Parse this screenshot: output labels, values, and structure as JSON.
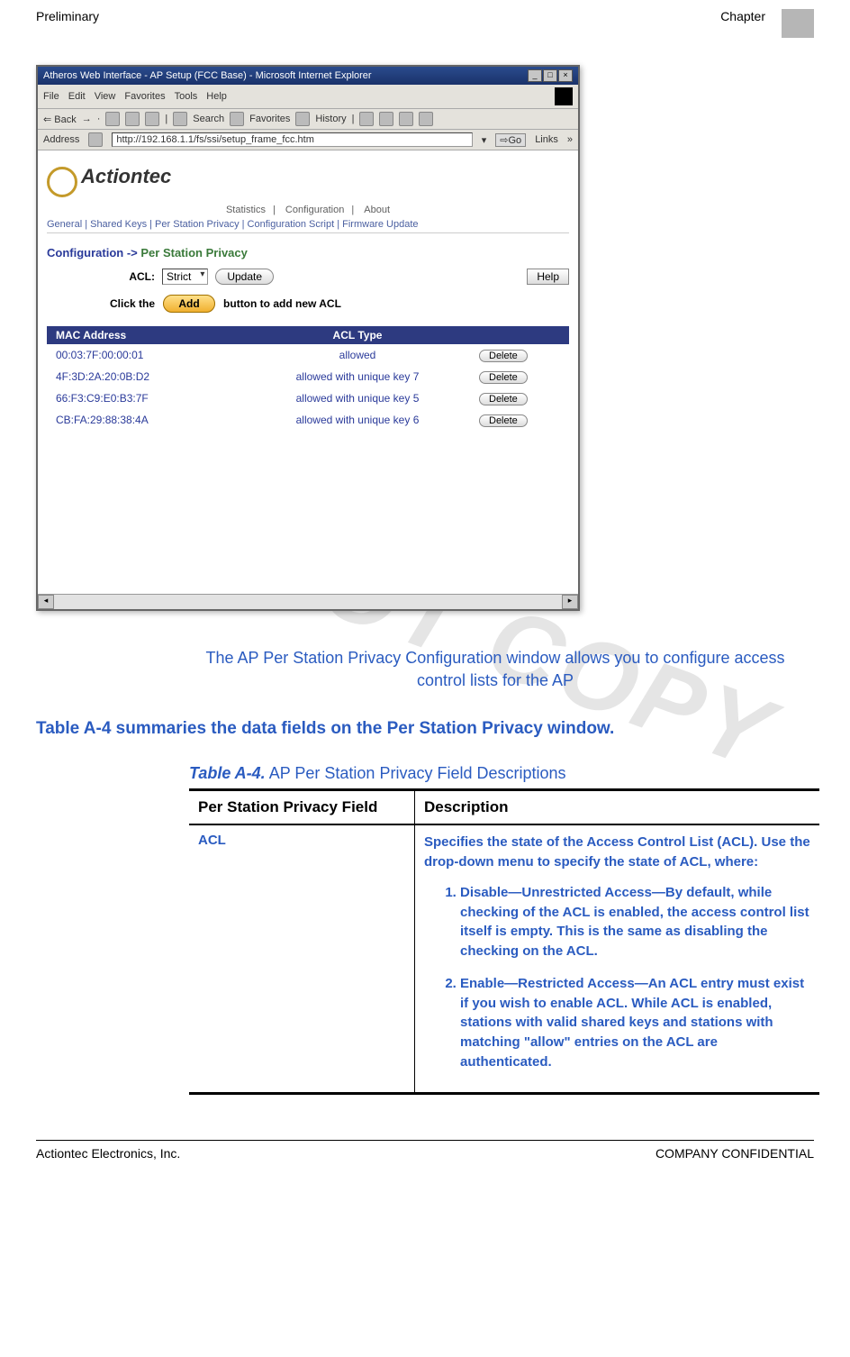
{
  "header": {
    "left": "Preliminary",
    "right": "Chapter"
  },
  "browser": {
    "title": "Atheros Web Interface - AP Setup (FCC Base) - Microsoft Internet Explorer",
    "menu": [
      "File",
      "Edit",
      "View",
      "Favorites",
      "Tools",
      "Help"
    ],
    "toolbar": {
      "back": "Back",
      "search": "Search",
      "favorites": "Favorites",
      "history": "History"
    },
    "address_label": "Address",
    "address_value": "http://192.168.1.1/fs/ssi/setup_frame_fcc.htm",
    "go": "Go",
    "links": "Links"
  },
  "app": {
    "logo": "Actiontec",
    "tabs": [
      "Statistics",
      "Configuration",
      "About"
    ],
    "subnav": "General | Shared Keys | Per Station Privacy | Configuration Script | Firmware Update",
    "config_prefix": "Configuration ->",
    "config_section": "Per Station Privacy",
    "acl_label": "ACL:",
    "acl_value": "Strict",
    "update": "Update",
    "help": "Help",
    "add_pre": "Click the",
    "add_btn": "Add",
    "add_post": "button to add new ACL",
    "thead": {
      "mac": "MAC Address",
      "type": "ACL Type"
    },
    "rows": [
      {
        "mac": "00:03:7F:00:00:01",
        "type": "allowed",
        "del": "Delete"
      },
      {
        "mac": "4F:3D:2A:20:0B:D2",
        "type": "allowed with unique key 7",
        "del": "Delete"
      },
      {
        "mac": "66:F3:C9:E0:B3:7F",
        "type": "allowed with unique key 5",
        "del": "Delete"
      },
      {
        "mac": "CB:FA:29:88:38:4A",
        "type": "allowed with unique key 6",
        "del": "Delete"
      }
    ]
  },
  "caption": "The AP Per Station Privacy Configuration window allows you to configure access control lists for the AP",
  "summary": "Table A-4 summaries the data fields on the Per Station Privacy window.",
  "tableA4": {
    "label": "Table A-4.",
    "title": "AP Per Station Privacy Field Descriptions",
    "head_left": "Per Station Privacy Field",
    "head_right": "Description",
    "row_left": "ACL",
    "intro": "Specifies the state of the Access Control List (ACL). Use the drop-down menu to specify the state of ACL, where:",
    "item1": "Disable—Unrestricted Access—By default, while checking of the ACL is enabled, the access control list itself is empty. This is the same as disabling the checking on the ACL.",
    "item2": "Enable—Restricted Access—An ACL entry must exist if you wish to enable ACL. While ACL is enabled, stations with valid shared keys and stations with matching \"allow\" entries on the ACL are authenticated."
  },
  "footer": {
    "left": "Actiontec Electronics, Inc.",
    "right": "COMPANY CONFIDENTIAL"
  },
  "watermark": "DO NOT COPY"
}
